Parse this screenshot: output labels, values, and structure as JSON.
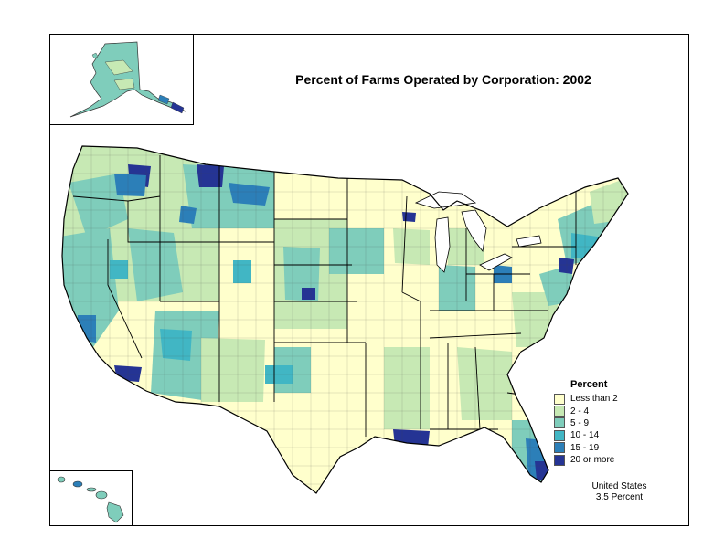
{
  "title": "Percent of Farms Operated by Corporation:  2002",
  "legend": {
    "title": "Percent",
    "items": [
      {
        "label": "Less than 2",
        "color": "#FFFFCC"
      },
      {
        "label": "2 - 4",
        "color": "#C7E9B4"
      },
      {
        "label": "5 - 9",
        "color": "#7FCDBB"
      },
      {
        "label": "10 - 14",
        "color": "#41B6C4"
      },
      {
        "label": "15 - 19",
        "color": "#2C7FB8"
      },
      {
        "label": "20 or more",
        "color": "#253494"
      }
    ]
  },
  "summary": {
    "line1": "United States",
    "line2": "3.5 Percent"
  },
  "regions": [
    "Alaska",
    "Hawaii",
    "Conterminous United States"
  ]
}
